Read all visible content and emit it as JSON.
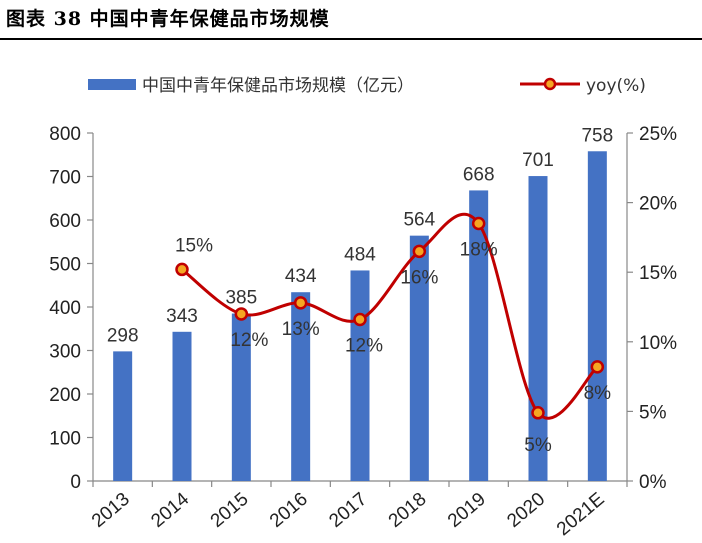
{
  "figure": {
    "title": "图表 38 中国中青年保健品市场规模"
  },
  "chart_data": {
    "type": "bar",
    "categories": [
      "2013",
      "2014",
      "2015",
      "2016",
      "2017",
      "2018",
      "2019",
      "2020",
      "2021E"
    ],
    "series": [
      {
        "name": "中国中青年保健品市场规模（亿元）",
        "type": "bar",
        "axis": "left",
        "values": [
          298,
          343,
          385,
          434,
          484,
          564,
          668,
          701,
          758
        ],
        "color": "#4472C4"
      },
      {
        "name": "yoy(%)",
        "type": "line",
        "axis": "right",
        "smooth": true,
        "x": [
          "2014",
          "2015",
          "2016",
          "2017",
          "2018",
          "2019",
          "2020",
          "2021E"
        ],
        "values": [
          15.2,
          12.0,
          12.8,
          11.6,
          16.5,
          18.5,
          4.9,
          8.2
        ],
        "labels": [
          "15%",
          "12%",
          "13%",
          "12%",
          "16%",
          "18%",
          "5%",
          "8%"
        ],
        "color": "#C00000",
        "marker_fill": "#F5A623"
      }
    ],
    "y_left": {
      "ylim": [
        0,
        800
      ],
      "ticks": [
        0,
        100,
        200,
        300,
        400,
        500,
        600,
        700,
        800
      ]
    },
    "y_right": {
      "ylim": [
        0,
        25
      ],
      "ticks": [
        "0%",
        "5%",
        "10%",
        "15%",
        "20%",
        "25%"
      ]
    },
    "legend": "top",
    "grid": false
  }
}
